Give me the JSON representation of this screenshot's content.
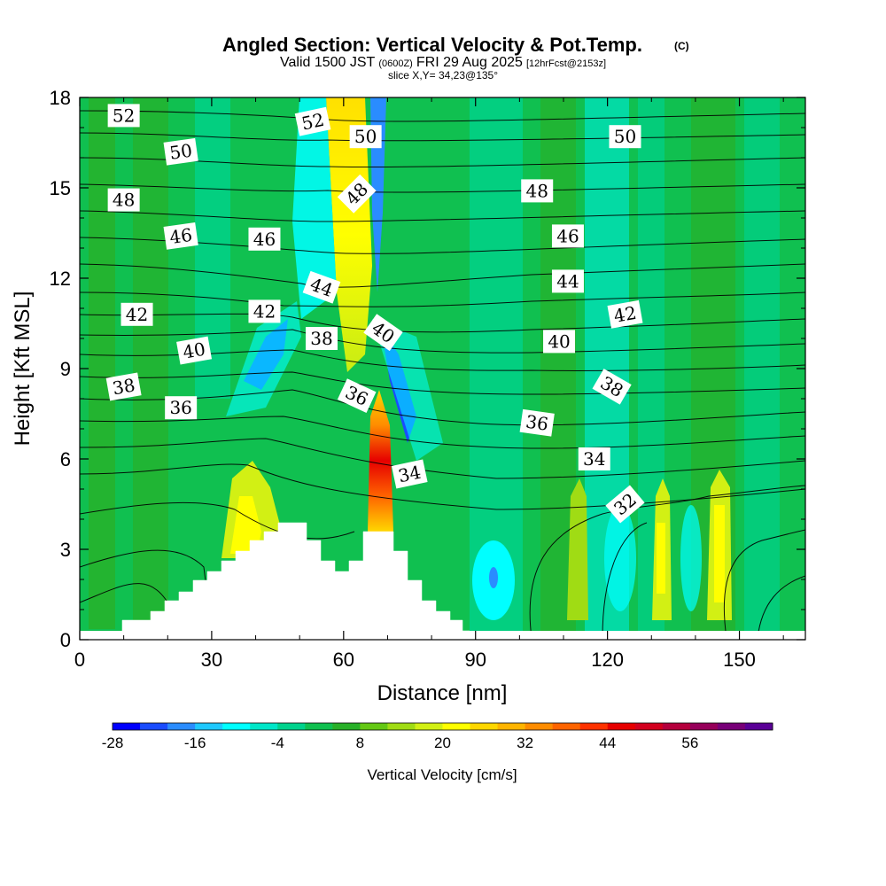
{
  "title": {
    "main": "Angled Section: Vertical Velocity & Pot.Temp.",
    "copyright": "(C)",
    "valid_prefix": "Valid 1500 JST",
    "valid_zulu": "(0600Z)",
    "valid_date": "FRI 29 Aug 2025",
    "forecast": "[12hrFcst@2153z]",
    "slice": "slice X,Y= 34,23@135°"
  },
  "chart_data": {
    "type": "heatmap",
    "xlabel": "Distance [nm]",
    "ylabel": "Height [Kft MSL]",
    "xlim": [
      0,
      165
    ],
    "ylim": [
      0,
      18
    ],
    "x_ticks": [
      0,
      30,
      60,
      90,
      120,
      150
    ],
    "y_ticks": [
      0,
      3,
      6,
      9,
      12,
      15,
      18
    ],
    "colorbar": {
      "title": "Vertical Velocity [cm/s]",
      "min": -28,
      "step": 4,
      "labels": [
        "-28",
        "-16",
        "-4",
        "8",
        "20",
        "32",
        "44",
        "56"
      ],
      "colors": [
        "#0000ff",
        "#1a4cff",
        "#2a8cff",
        "#1ec8ff",
        "#00ffff",
        "#00e6c8",
        "#00d28c",
        "#10c050",
        "#28b028",
        "#64c814",
        "#a0dc14",
        "#d2f014",
        "#ffff00",
        "#ffd700",
        "#ffb400",
        "#ff8c00",
        "#ff6400",
        "#ff3200",
        "#e60000",
        "#d2001e",
        "#b4003c",
        "#96005a",
        "#780078",
        "#5a0096"
      ]
    },
    "contour_labels": [
      {
        "value": "52",
        "x": 10,
        "y": 17.4,
        "angle": 0
      },
      {
        "value": "50",
        "x": 23,
        "y": 16.2,
        "angle": -8
      },
      {
        "value": "48",
        "x": 10,
        "y": 14.6,
        "angle": 0
      },
      {
        "value": "46",
        "x": 23,
        "y": 13.4,
        "angle": -8
      },
      {
        "value": "42",
        "x": 13,
        "y": 10.8,
        "angle": 0
      },
      {
        "value": "40",
        "x": 26,
        "y": 9.6,
        "angle": -10
      },
      {
        "value": "38",
        "x": 10,
        "y": 8.4,
        "angle": -10
      },
      {
        "value": "36",
        "x": 23,
        "y": 7.7,
        "angle": 0
      },
      {
        "value": "46",
        "x": 42,
        "y": 13.3,
        "angle": 0
      },
      {
        "value": "42",
        "x": 42,
        "y": 10.9,
        "angle": 0
      },
      {
        "value": "44",
        "x": 55,
        "y": 11.7,
        "angle": 20
      },
      {
        "value": "38",
        "x": 55,
        "y": 10.0,
        "angle": 0
      },
      {
        "value": "52",
        "x": 53,
        "y": 17.2,
        "angle": -12
      },
      {
        "value": "50",
        "x": 65,
        "y": 16.7,
        "angle": 0
      },
      {
        "value": "48",
        "x": 63,
        "y": 14.8,
        "angle": -45
      },
      {
        "value": "40",
        "x": 69,
        "y": 10.2,
        "angle": 35
      },
      {
        "value": "36",
        "x": 63,
        "y": 8.1,
        "angle": 25
      },
      {
        "value": "34",
        "x": 75,
        "y": 5.5,
        "angle": -12
      },
      {
        "value": "50",
        "x": 124,
        "y": 16.7,
        "angle": 0
      },
      {
        "value": "48",
        "x": 104,
        "y": 14.9,
        "angle": 0
      },
      {
        "value": "46",
        "x": 111,
        "y": 13.4,
        "angle": 0
      },
      {
        "value": "44",
        "x": 111,
        "y": 11.9,
        "angle": 0
      },
      {
        "value": "42",
        "x": 124,
        "y": 10.8,
        "angle": -10
      },
      {
        "value": "40",
        "x": 109,
        "y": 9.9,
        "angle": 0
      },
      {
        "value": "38",
        "x": 121,
        "y": 8.4,
        "angle": 30
      },
      {
        "value": "36",
        "x": 104,
        "y": 7.2,
        "angle": 8
      },
      {
        "value": "34",
        "x": 117,
        "y": 6.0,
        "angle": 0
      },
      {
        "value": "32",
        "x": 124,
        "y": 4.5,
        "angle": -40
      }
    ]
  }
}
